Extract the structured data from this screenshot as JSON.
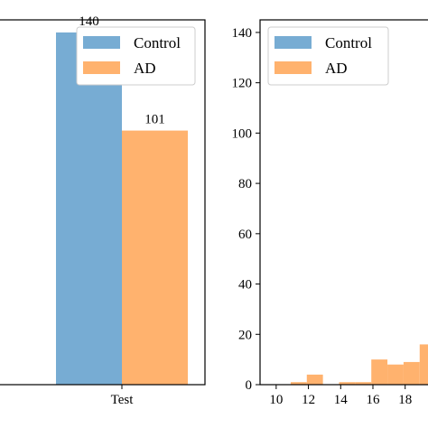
{
  "chart_data": [
    {
      "type": "bar",
      "categories": [
        "Test"
      ],
      "series": [
        {
          "name": "Control",
          "values": [
            140
          ],
          "color": "#77acd3"
        },
        {
          "name": "AD",
          "values": [
            101
          ],
          "color": "#ffb26e"
        }
      ],
      "data_labels": [
        "140",
        "101"
      ],
      "ylim": [
        0,
        145
      ],
      "legend": {
        "placement": "top-right",
        "entries": [
          "Control",
          "AD"
        ]
      },
      "grid": false
    },
    {
      "type": "bar",
      "subtype": "histogram",
      "x_ticks": [
        "10",
        "12",
        "14",
        "16",
        "18"
      ],
      "y_ticks": [
        "0",
        "20",
        "40",
        "60",
        "80",
        "100",
        "120",
        "140"
      ],
      "xlim": [
        9.0,
        20.2
      ],
      "ylim": [
        0,
        145
      ],
      "series": [
        {
          "name": "Control",
          "values": [],
          "color": "#77acd3"
        },
        {
          "name": "AD",
          "color": "#ffb26e",
          "bins": [
            {
              "x0": 10.9,
              "x1": 11.9,
              "y": 1
            },
            {
              "x0": 11.9,
              "x1": 12.9,
              "y": 4
            },
            {
              "x0": 12.9,
              "x1": 13.9,
              "y": 0
            },
            {
              "x0": 13.9,
              "x1": 14.9,
              "y": 1
            },
            {
              "x0": 14.9,
              "x1": 15.9,
              "y": 1
            },
            {
              "x0": 15.9,
              "x1": 16.9,
              "y": 10
            },
            {
              "x0": 16.9,
              "x1": 17.9,
              "y": 8
            },
            {
              "x0": 17.9,
              "x1": 18.9,
              "y": 9
            },
            {
              "x0": 18.9,
              "x1": 19.9,
              "y": 16
            }
          ]
        }
      ],
      "legend": {
        "placement": "top-left",
        "entries": [
          "Control",
          "AD"
        ]
      },
      "grid": false
    }
  ]
}
